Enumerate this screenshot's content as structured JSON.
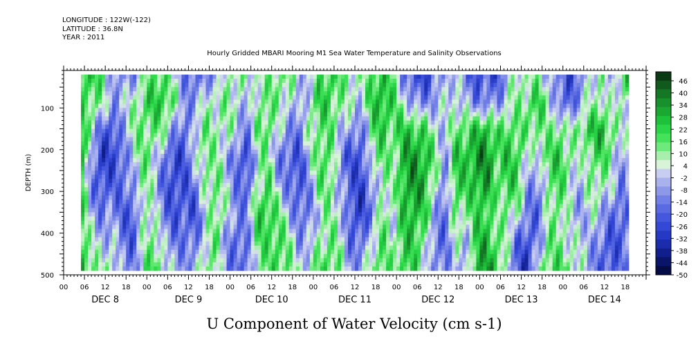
{
  "header": {
    "longitude": "LONGITUDE : 122W(-122)",
    "latitude": "LATITUDE : 36.8N",
    "year": "YEAR : 2011"
  },
  "chart_data": {
    "type": "heatmap",
    "title": "Hourly Gridded MBARI Mooring M1 Sea Water Temperature and Salinity Observations",
    "variable_title": "U Component of Water Velocity (cm s-1)",
    "ylabel": "DEPTH (m)",
    "ylim": [
      500,
      10
    ],
    "yticks": [
      100,
      200,
      300,
      400,
      500
    ],
    "x_hour_labels": [
      "00",
      "06",
      "12",
      "18",
      "00",
      "06",
      "12",
      "18",
      "00",
      "06",
      "12",
      "18",
      "00",
      "06",
      "12",
      "18",
      "00",
      "06",
      "12",
      "18",
      "00",
      "06",
      "12",
      "18",
      "00",
      "06",
      "12",
      "18"
    ],
    "x_day_labels": [
      "DEC  8",
      "DEC  9",
      "DEC 10",
      "DEC 11",
      "DEC 12",
      "DEC 13",
      "DEC 14"
    ],
    "x_start_day": 8,
    "data_start_hour": 5,
    "data_end_hour": 163,
    "data_depth_range": [
      20,
      485
    ],
    "colorbar": {
      "levels": [
        "46",
        "40",
        "34",
        "28",
        "22",
        "16",
        "10",
        "4",
        "-2",
        "-8",
        "-14",
        "-20",
        "-26",
        "-32",
        "-38",
        "-44",
        "-50"
      ],
      "colors": [
        "#0a3a14",
        "#0f5a1c",
        "#137724",
        "#17912b",
        "#1aa832",
        "#1ec23a",
        "#2ad648",
        "#44e25a",
        "#6ee97c",
        "#a8efae",
        "#d8f4d8",
        "#c8cdf2",
        "#aab2ee",
        "#8d98ea",
        "#7180e6",
        "#5a6ae0",
        "#4558dd",
        "#3448d6",
        "#2639c4",
        "#1a2cab",
        "#111f8c",
        "#0a1468",
        "#050b44"
      ]
    },
    "profile_columns": [
      {
        "hour": 5,
        "w": [
          0.55,
          0.3,
          0.55,
          0.7,
          0.55,
          0.4,
          0.5,
          0.6
        ]
      },
      {
        "hour": 8,
        "w": [
          0.5,
          0.35,
          0.1,
          -0.2,
          -0.3,
          -0.1,
          0.1,
          0.3
        ]
      },
      {
        "hour": 11,
        "w": [
          0.3,
          0.2,
          -0.4,
          -0.6,
          -0.5,
          -0.3,
          -0.1,
          0.1
        ]
      },
      {
        "hour": 14,
        "w": [
          -0.1,
          -0.2,
          -0.5,
          -0.55,
          -0.4,
          -0.2,
          0.0,
          0.2
        ]
      },
      {
        "hour": 17,
        "w": [
          -0.3,
          0.0,
          -0.2,
          -0.4,
          -0.35,
          -0.4,
          -0.3,
          -0.2
        ]
      },
      {
        "hour": 20,
        "w": [
          -0.2,
          0.1,
          0.2,
          0.0,
          -0.2,
          -0.5,
          -0.45,
          -0.3
        ]
      },
      {
        "hour": 23,
        "w": [
          0.1,
          0.35,
          0.3,
          0.3,
          0.3,
          0.2,
          0.1,
          0.2
        ]
      },
      {
        "hour": 26,
        "w": [
          0.4,
          0.5,
          0.3,
          0.1,
          0.0,
          0.1,
          0.3,
          0.45
        ]
      },
      {
        "hour": 29,
        "w": [
          0.35,
          0.5,
          0.2,
          -0.3,
          -0.4,
          -0.3,
          -0.1,
          0.1
        ]
      },
      {
        "hour": 32,
        "w": [
          0.0,
          0.2,
          -0.2,
          -0.5,
          -0.55,
          -0.5,
          -0.3,
          -0.1
        ]
      },
      {
        "hour": 35,
        "w": [
          -0.3,
          -0.2,
          -0.4,
          -0.5,
          -0.45,
          -0.4,
          -0.3,
          -0.2
        ]
      },
      {
        "hour": 38,
        "w": [
          -0.4,
          -0.2,
          0.1,
          0.0,
          -0.3,
          -0.5,
          -0.35,
          -0.1
        ]
      },
      {
        "hour": 41,
        "w": [
          -0.2,
          0.1,
          0.3,
          0.3,
          0.2,
          0.0,
          0.1,
          0.3
        ]
      },
      {
        "hour": 44,
        "w": [
          -0.3,
          0.2,
          0.1,
          0.2,
          0.35,
          0.3,
          0.3,
          0.2
        ]
      },
      {
        "hour": 47,
        "w": [
          0.2,
          0.2,
          0.2,
          -0.1,
          0.0,
          0.1,
          -0.2,
          -0.3
        ]
      },
      {
        "hour": 50,
        "w": [
          0.2,
          0.1,
          0.0,
          -0.4,
          -0.3,
          -0.3,
          -0.4,
          -0.3
        ]
      },
      {
        "hour": 53,
        "w": [
          0.1,
          -0.2,
          -0.3,
          -0.5,
          -0.45,
          -0.2,
          -0.3,
          -0.4
        ]
      },
      {
        "hour": 56,
        "w": [
          0.15,
          0.2,
          0.3,
          0.1,
          0.2,
          0.45,
          0.4,
          0.2
        ]
      },
      {
        "hour": 59,
        "w": [
          0.2,
          0.3,
          0.35,
          0.25,
          0.4,
          0.5,
          0.35,
          0.3
        ]
      },
      {
        "hour": 62,
        "w": [
          0.3,
          0.2,
          0.0,
          -0.3,
          -0.1,
          0.3,
          0.45,
          0.4
        ]
      },
      {
        "hour": 65,
        "w": [
          0.25,
          0.1,
          -0.2,
          -0.4,
          -0.3,
          -0.1,
          0.2,
          0.3
        ]
      },
      {
        "hour": 68,
        "w": [
          0.0,
          -0.2,
          -0.3,
          -0.5,
          -0.5,
          -0.35,
          -0.2,
          0.0
        ]
      },
      {
        "hour": 71,
        "w": [
          -0.1,
          0.1,
          0.2,
          0.0,
          -0.2,
          -0.3,
          -0.1,
          0.1
        ]
      },
      {
        "hour": 74,
        "w": [
          0.4,
          0.5,
          0.3,
          0.4,
          0.3,
          0.1,
          0.2,
          0.35
        ]
      },
      {
        "hour": 77,
        "w": [
          0.45,
          0.4,
          0.3,
          0.35,
          0.3,
          0.2,
          0.3,
          0.4
        ]
      },
      {
        "hour": 80,
        "w": [
          0.3,
          0.2,
          0.0,
          -0.3,
          -0.2,
          0.0,
          0.1,
          0.2
        ]
      },
      {
        "hour": 83,
        "w": [
          0.2,
          0.1,
          -0.2,
          -0.5,
          -0.4,
          -0.5,
          -0.4,
          -0.2
        ]
      },
      {
        "hour": 86,
        "w": [
          0.1,
          0.0,
          -0.3,
          -0.5,
          -0.6,
          -0.55,
          -0.35,
          -0.1
        ]
      },
      {
        "hour": 89,
        "w": [
          0.4,
          0.5,
          0.3,
          0.2,
          -0.2,
          -0.3,
          0.1,
          0.2
        ]
      },
      {
        "hour": 92,
        "w": [
          0.5,
          0.6,
          0.5,
          0.3,
          0.2,
          0.3,
          0.35,
          0.4
        ]
      },
      {
        "hour": 95,
        "w": [
          0.3,
          0.4,
          0.3,
          0.2,
          0.1,
          0.0,
          0.1,
          0.2
        ]
      },
      {
        "hour": 98,
        "w": [
          -0.3,
          0.1,
          0.5,
          0.6,
          0.6,
          0.5,
          0.45,
          0.45
        ]
      },
      {
        "hour": 101,
        "w": [
          -0.5,
          -0.2,
          0.5,
          0.7,
          0.7,
          0.6,
          0.5,
          0.4
        ]
      },
      {
        "hour": 104,
        "w": [
          -0.6,
          -0.3,
          0.4,
          0.6,
          0.6,
          0.45,
          0.2,
          0.1
        ]
      },
      {
        "hour": 107,
        "w": [
          -0.3,
          -0.1,
          0.1,
          0.3,
          0.1,
          -0.1,
          -0.3,
          -0.2
        ]
      },
      {
        "hour": 110,
        "w": [
          -0.1,
          0.0,
          -0.1,
          -0.2,
          -0.3,
          -0.4,
          -0.35,
          -0.3
        ]
      },
      {
        "hour": 113,
        "w": [
          0.0,
          0.1,
          0.3,
          0.5,
          0.5,
          0.3,
          0.1,
          0.0
        ]
      },
      {
        "hour": 116,
        "w": [
          -0.3,
          -0.1,
          0.4,
          0.5,
          0.4,
          0.2,
          -0.1,
          -0.2
        ]
      },
      {
        "hour": 119,
        "w": [
          -0.5,
          -0.3,
          0.5,
          0.7,
          0.6,
          0.4,
          0.5,
          0.6
        ]
      },
      {
        "hour": 122,
        "w": [
          -0.45,
          -0.2,
          0.6,
          0.75,
          0.65,
          0.5,
          0.6,
          0.65
        ]
      },
      {
        "hour": 125,
        "w": [
          -0.5,
          -0.3,
          0.3,
          0.4,
          0.3,
          0.1,
          0.3,
          0.5
        ]
      },
      {
        "hour": 128,
        "w": [
          -0.1,
          0.1,
          0.4,
          0.5,
          0.45,
          0.3,
          0.1,
          0.0
        ]
      },
      {
        "hour": 131,
        "w": [
          0.2,
          0.2,
          0.3,
          0.45,
          0.4,
          0.1,
          -0.4,
          -0.5
        ]
      },
      {
        "hour": 134,
        "w": [
          0.1,
          0.3,
          0.3,
          -0.1,
          -0.2,
          -0.3,
          -0.5,
          -0.6
        ]
      },
      {
        "hour": 137,
        "w": [
          0.2,
          0.5,
          0.3,
          0.1,
          -0.3,
          -0.4,
          -0.2,
          0.1
        ]
      },
      {
        "hour": 140,
        "w": [
          -0.1,
          0.1,
          0.2,
          0.4,
          0.3,
          0.2,
          0.3,
          0.4
        ]
      },
      {
        "hour": 143,
        "w": [
          -0.3,
          -0.3,
          0.3,
          0.5,
          0.4,
          0.3,
          0.2,
          0.4
        ]
      },
      {
        "hour": 146,
        "w": [
          -0.5,
          -0.45,
          0.1,
          0.2,
          0.1,
          0.0,
          0.1,
          0.2
        ]
      },
      {
        "hour": 149,
        "w": [
          -0.3,
          -0.1,
          0.3,
          0.0,
          -0.1,
          -0.2,
          0.0,
          0.1
        ]
      },
      {
        "hour": 152,
        "w": [
          0.1,
          0.1,
          0.5,
          0.3,
          0.2,
          0.1,
          -0.1,
          -0.2
        ]
      },
      {
        "hour": 155,
        "w": [
          0.2,
          0.2,
          0.6,
          0.4,
          0.2,
          -0.1,
          -0.3,
          -0.4
        ]
      },
      {
        "hour": 158,
        "w": [
          -0.2,
          0.0,
          0.3,
          0.2,
          0.0,
          -0.3,
          -0.5,
          -0.45
        ]
      },
      {
        "hour": 161,
        "w": [
          0.4,
          0.1,
          0.0,
          -0.2,
          -0.3,
          -0.4,
          -0.4,
          -0.3
        ]
      },
      {
        "hour": 163,
        "w": [
          0.5,
          0.2,
          0.1,
          0.0,
          -0.1,
          -0.3,
          -0.3,
          -0.2
        ]
      }
    ]
  }
}
